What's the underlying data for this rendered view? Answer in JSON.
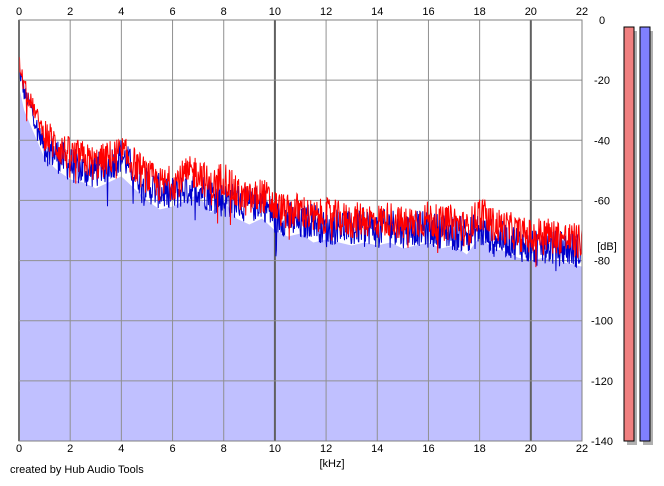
{
  "chart_data": {
    "type": "area",
    "xlabel": "[kHz]",
    "ylabel": "[dB]",
    "xlim": [
      0,
      22
    ],
    "ylim": [
      -140,
      0
    ],
    "x_ticks": [
      "0",
      "2",
      "4",
      "6",
      "8",
      "10",
      "12",
      "14",
      "16",
      "18",
      "20",
      "22"
    ],
    "y_ticks": [
      "0",
      "-20",
      "-40",
      "-60",
      "-80",
      "-100",
      "-120",
      "-140"
    ],
    "grid": true,
    "background_color": "#c0c0ff",
    "series": [
      {
        "color": "#ff0000",
        "x": [
          0,
          0.2,
          0.5,
          0.8,
          1,
          1.5,
          2,
          2.5,
          3,
          3.5,
          4,
          4.5,
          5,
          5.5,
          6,
          6.5,
          7,
          7.5,
          8,
          8.5,
          9,
          9.5,
          10,
          10.5,
          11,
          11.5,
          12,
          12.5,
          13,
          13.5,
          14,
          14.5,
          15,
          15.5,
          16,
          16.5,
          17,
          17.5,
          18,
          18.5,
          19,
          19.5,
          20,
          20.5,
          21,
          21.5,
          22
        ],
        "values": [
          -14,
          -22,
          -28,
          -34,
          -38,
          -42,
          -45,
          -46,
          -48,
          -46,
          -44,
          -48,
          -52,
          -55,
          -54,
          -52,
          -50,
          -56,
          -52,
          -58,
          -60,
          -58,
          -62,
          -64,
          -63,
          -66,
          -65,
          -66,
          -67,
          -66,
          -67,
          -66,
          -68,
          -67,
          -66,
          -68,
          -67,
          -70,
          -64,
          -68,
          -69,
          -71,
          -72,
          -71,
          -72,
          -73,
          -74
        ]
      },
      {
        "color": "#0000cc",
        "x": [
          0,
          0.2,
          0.5,
          0.8,
          1,
          1.5,
          2,
          2.5,
          3,
          3.5,
          4,
          4.5,
          5,
          5.5,
          6,
          6.5,
          7,
          7.5,
          8,
          8.5,
          9,
          9.5,
          10,
          10.5,
          11,
          11.5,
          12,
          12.5,
          13,
          13.5,
          14,
          14.5,
          15,
          15.5,
          16,
          16.5,
          17,
          17.5,
          18,
          18.5,
          19,
          19.5,
          20,
          20.5,
          21,
          21.5,
          22
        ],
        "values": [
          -16,
          -24,
          -30,
          -38,
          -42,
          -45,
          -48,
          -50,
          -50,
          -48,
          -45,
          -50,
          -55,
          -57,
          -58,
          -56,
          -56,
          -58,
          -60,
          -60,
          -62,
          -60,
          -66,
          -66,
          -68,
          -66,
          -70,
          -68,
          -70,
          -68,
          -70,
          -68,
          -70,
          -69,
          -70,
          -70,
          -71,
          -71,
          -70,
          -72,
          -73,
          -74,
          -76,
          -75,
          -76,
          -76,
          -77
        ]
      }
    ]
  },
  "footer": {
    "credit": "created by Hub Audio Tools"
  },
  "level_meter": {
    "left_color": "#f08080",
    "right_color": "#8080ff",
    "left_fill": 1.0,
    "right_fill": 1.0
  }
}
